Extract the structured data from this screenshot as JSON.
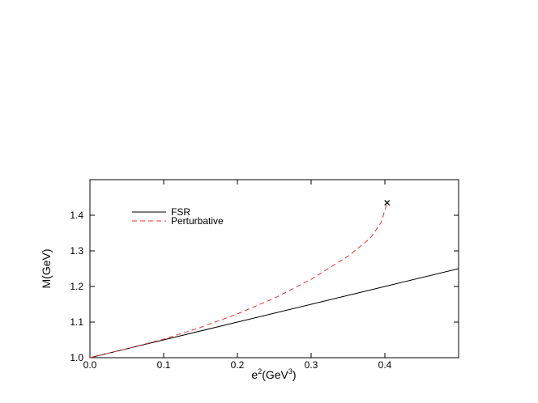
{
  "chart_data": {
    "type": "line",
    "xlabel": [
      "e",
      "2",
      "(GeV",
      "3",
      ")"
    ],
    "ylabel": "M(GeV)",
    "xlim": [
      0,
      0.5
    ],
    "ylim": [
      1.0,
      1.5
    ],
    "xticks": [
      {
        "value": 0,
        "label": "0.0"
      },
      0.1,
      0.2,
      0.3,
      0.4
    ],
    "yticks": [
      {
        "value": 1,
        "label": "1.0"
      },
      1.1,
      1.2,
      1.3,
      1.4
    ],
    "legend": "upper left",
    "series": [
      {
        "name": "FSR",
        "color": "#000000",
        "dash": false,
        "x": [
          0,
          0.1,
          0.2,
          0.3,
          0.4,
          0.5
        ],
        "values": [
          1.0,
          1.05,
          1.1,
          1.15,
          1.2,
          1.25
        ]
      },
      {
        "name": "Perturbative",
        "color": "#e8322f",
        "dash": true,
        "end_marker": "x",
        "x": [
          0,
          0.05,
          0.1,
          0.15,
          0.2,
          0.25,
          0.3,
          0.35,
          0.38,
          0.395,
          0.403
        ],
        "values": [
          1.0,
          1.025,
          1.052,
          1.085,
          1.123,
          1.167,
          1.22,
          1.285,
          1.335,
          1.38,
          1.435
        ]
      }
    ]
  }
}
